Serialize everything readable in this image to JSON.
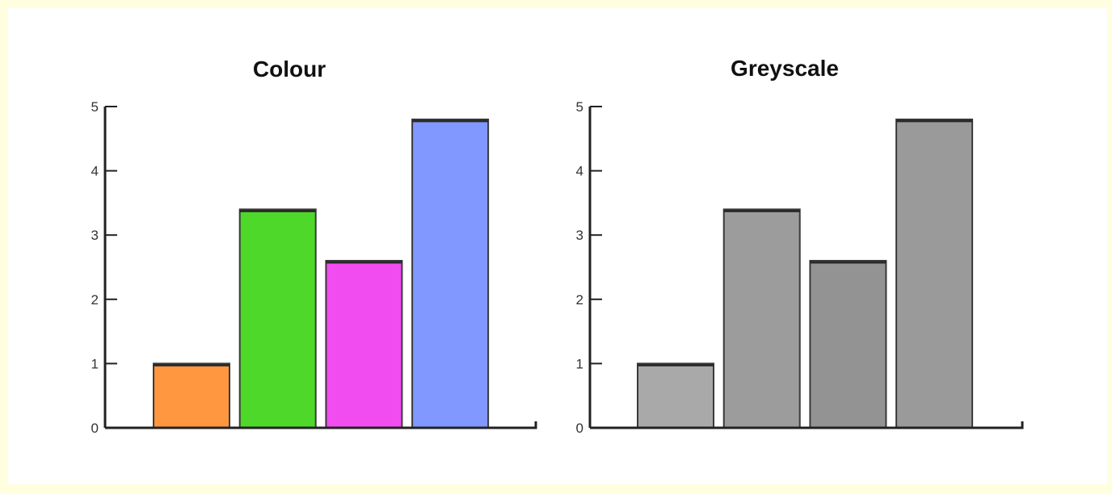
{
  "chart_data": [
    {
      "type": "bar",
      "title": "Colour",
      "categories": [
        "",
        "",
        "",
        ""
      ],
      "values": [
        1.0,
        3.4,
        2.6,
        4.8
      ],
      "colors": [
        "#FF9640",
        "#4ED82A",
        "#F04CF0",
        "#8098FF"
      ],
      "ylim": [
        0,
        5
      ],
      "yticks": [
        "0",
        "1",
        "2",
        "3",
        "4",
        "5"
      ],
      "grid": false
    },
    {
      "type": "bar",
      "title": "Greyscale",
      "categories": [
        "",
        "",
        "",
        ""
      ],
      "values": [
        1.0,
        3.4,
        2.6,
        4.8
      ],
      "colors": [
        "#A9A9A9",
        "#9C9C9C",
        "#939393",
        "#9A9A9A"
      ],
      "ylim": [
        0,
        5
      ],
      "yticks": [
        "0",
        "1",
        "2",
        "3",
        "4",
        "5"
      ],
      "grid": false
    }
  ]
}
